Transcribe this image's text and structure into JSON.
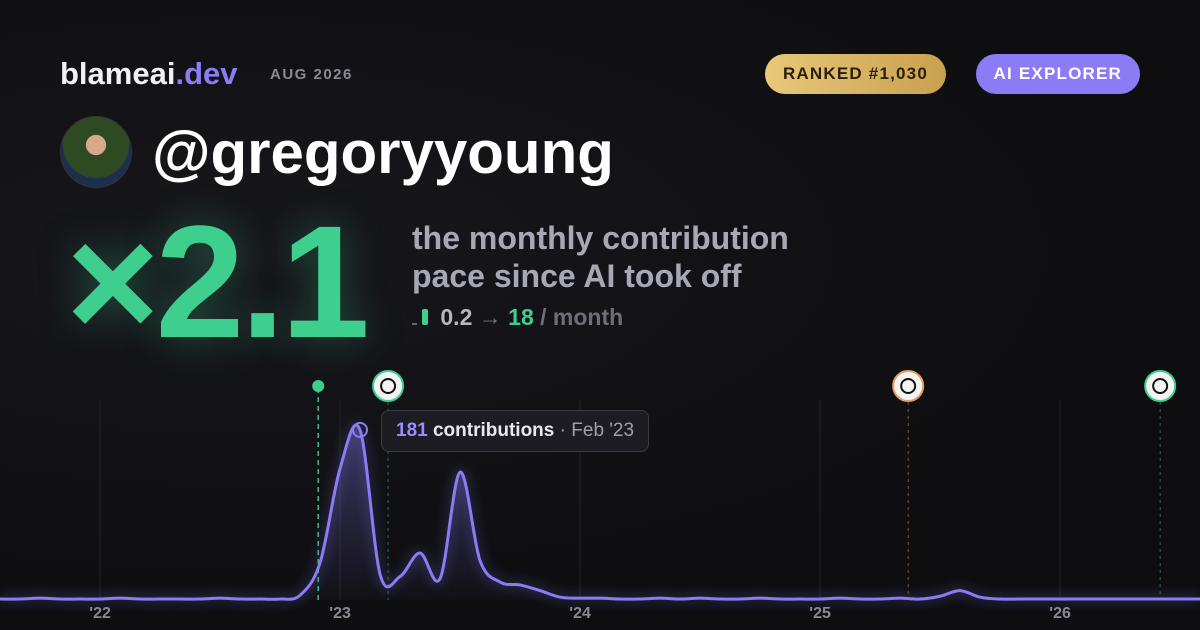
{
  "brand": {
    "name": "blameai",
    "tld": ".dev",
    "date": "AUG 2026"
  },
  "badges": [
    "RANKED #1,030",
    "AI EXPLORER"
  ],
  "username": "@gregoryyoung",
  "multiplier": "×2.1",
  "headline": [
    "the monthly contribution",
    "pace since AI took off"
  ],
  "pace": {
    "from": 0.2,
    "arrow": "→",
    "to": 18,
    "unit": "/ month"
  },
  "chart_data": {
    "type": "area",
    "x": [
      2021.583,
      2021.667,
      2021.75,
      2021.833,
      2021.917,
      2022,
      2022.083,
      2022.167,
      2022.25,
      2022.333,
      2022.417,
      2022.5,
      2022.583,
      2022.667,
      2022.75,
      2022.833,
      2022.917,
      2023,
      2023.083,
      2023.167,
      2023.25,
      2023.333,
      2023.417,
      2023.5,
      2023.583,
      2023.667,
      2023.75,
      2023.833,
      2023.917,
      2024,
      2024.083,
      2024.167,
      2024.25,
      2024.333,
      2024.417,
      2024.5,
      2024.583,
      2024.667,
      2024.75,
      2024.833,
      2024.917,
      2025,
      2025.083,
      2025.167,
      2025.25,
      2025.333,
      2025.417,
      2025.5,
      2025.583,
      2025.667,
      2025.75,
      2025.833,
      2025.917,
      2026,
      2026.083,
      2026.167,
      2026.25,
      2026.333,
      2026.417,
      2026.5,
      2026.583
    ],
    "series": [
      {
        "name": "contributions",
        "color": "#8b7cf6",
        "values": [
          1,
          1,
          2,
          1,
          1,
          1,
          2,
          1,
          1,
          1,
          1,
          2,
          1,
          1,
          1,
          5,
          40,
          140,
          181,
          27,
          25,
          50,
          23,
          136,
          42,
          19,
          16,
          10,
          3,
          2,
          2,
          1,
          1,
          2,
          1,
          2,
          1,
          1,
          2,
          1,
          1,
          1,
          2,
          1,
          1,
          2,
          1,
          4,
          10,
          3,
          1,
          1,
          1,
          1,
          1,
          1,
          1,
          1,
          1,
          1,
          1
        ]
      }
    ],
    "xlim": [
      2021.583,
      2026.583
    ],
    "xticks": [
      {
        "value": 2022,
        "label": "'22"
      },
      {
        "value": 2023,
        "label": "'23"
      },
      {
        "value": 2024,
        "label": "'24"
      },
      {
        "value": 2025,
        "label": "'25"
      },
      {
        "value": 2026,
        "label": "'26"
      }
    ],
    "ylim": [
      0,
      200
    ],
    "events_x": [
      2022.909,
      2023.2,
      2025.367,
      2026.417
    ],
    "tooltip": {
      "value": 181,
      "label": "contributions",
      "date": "Feb '23"
    },
    "grid": true
  }
}
